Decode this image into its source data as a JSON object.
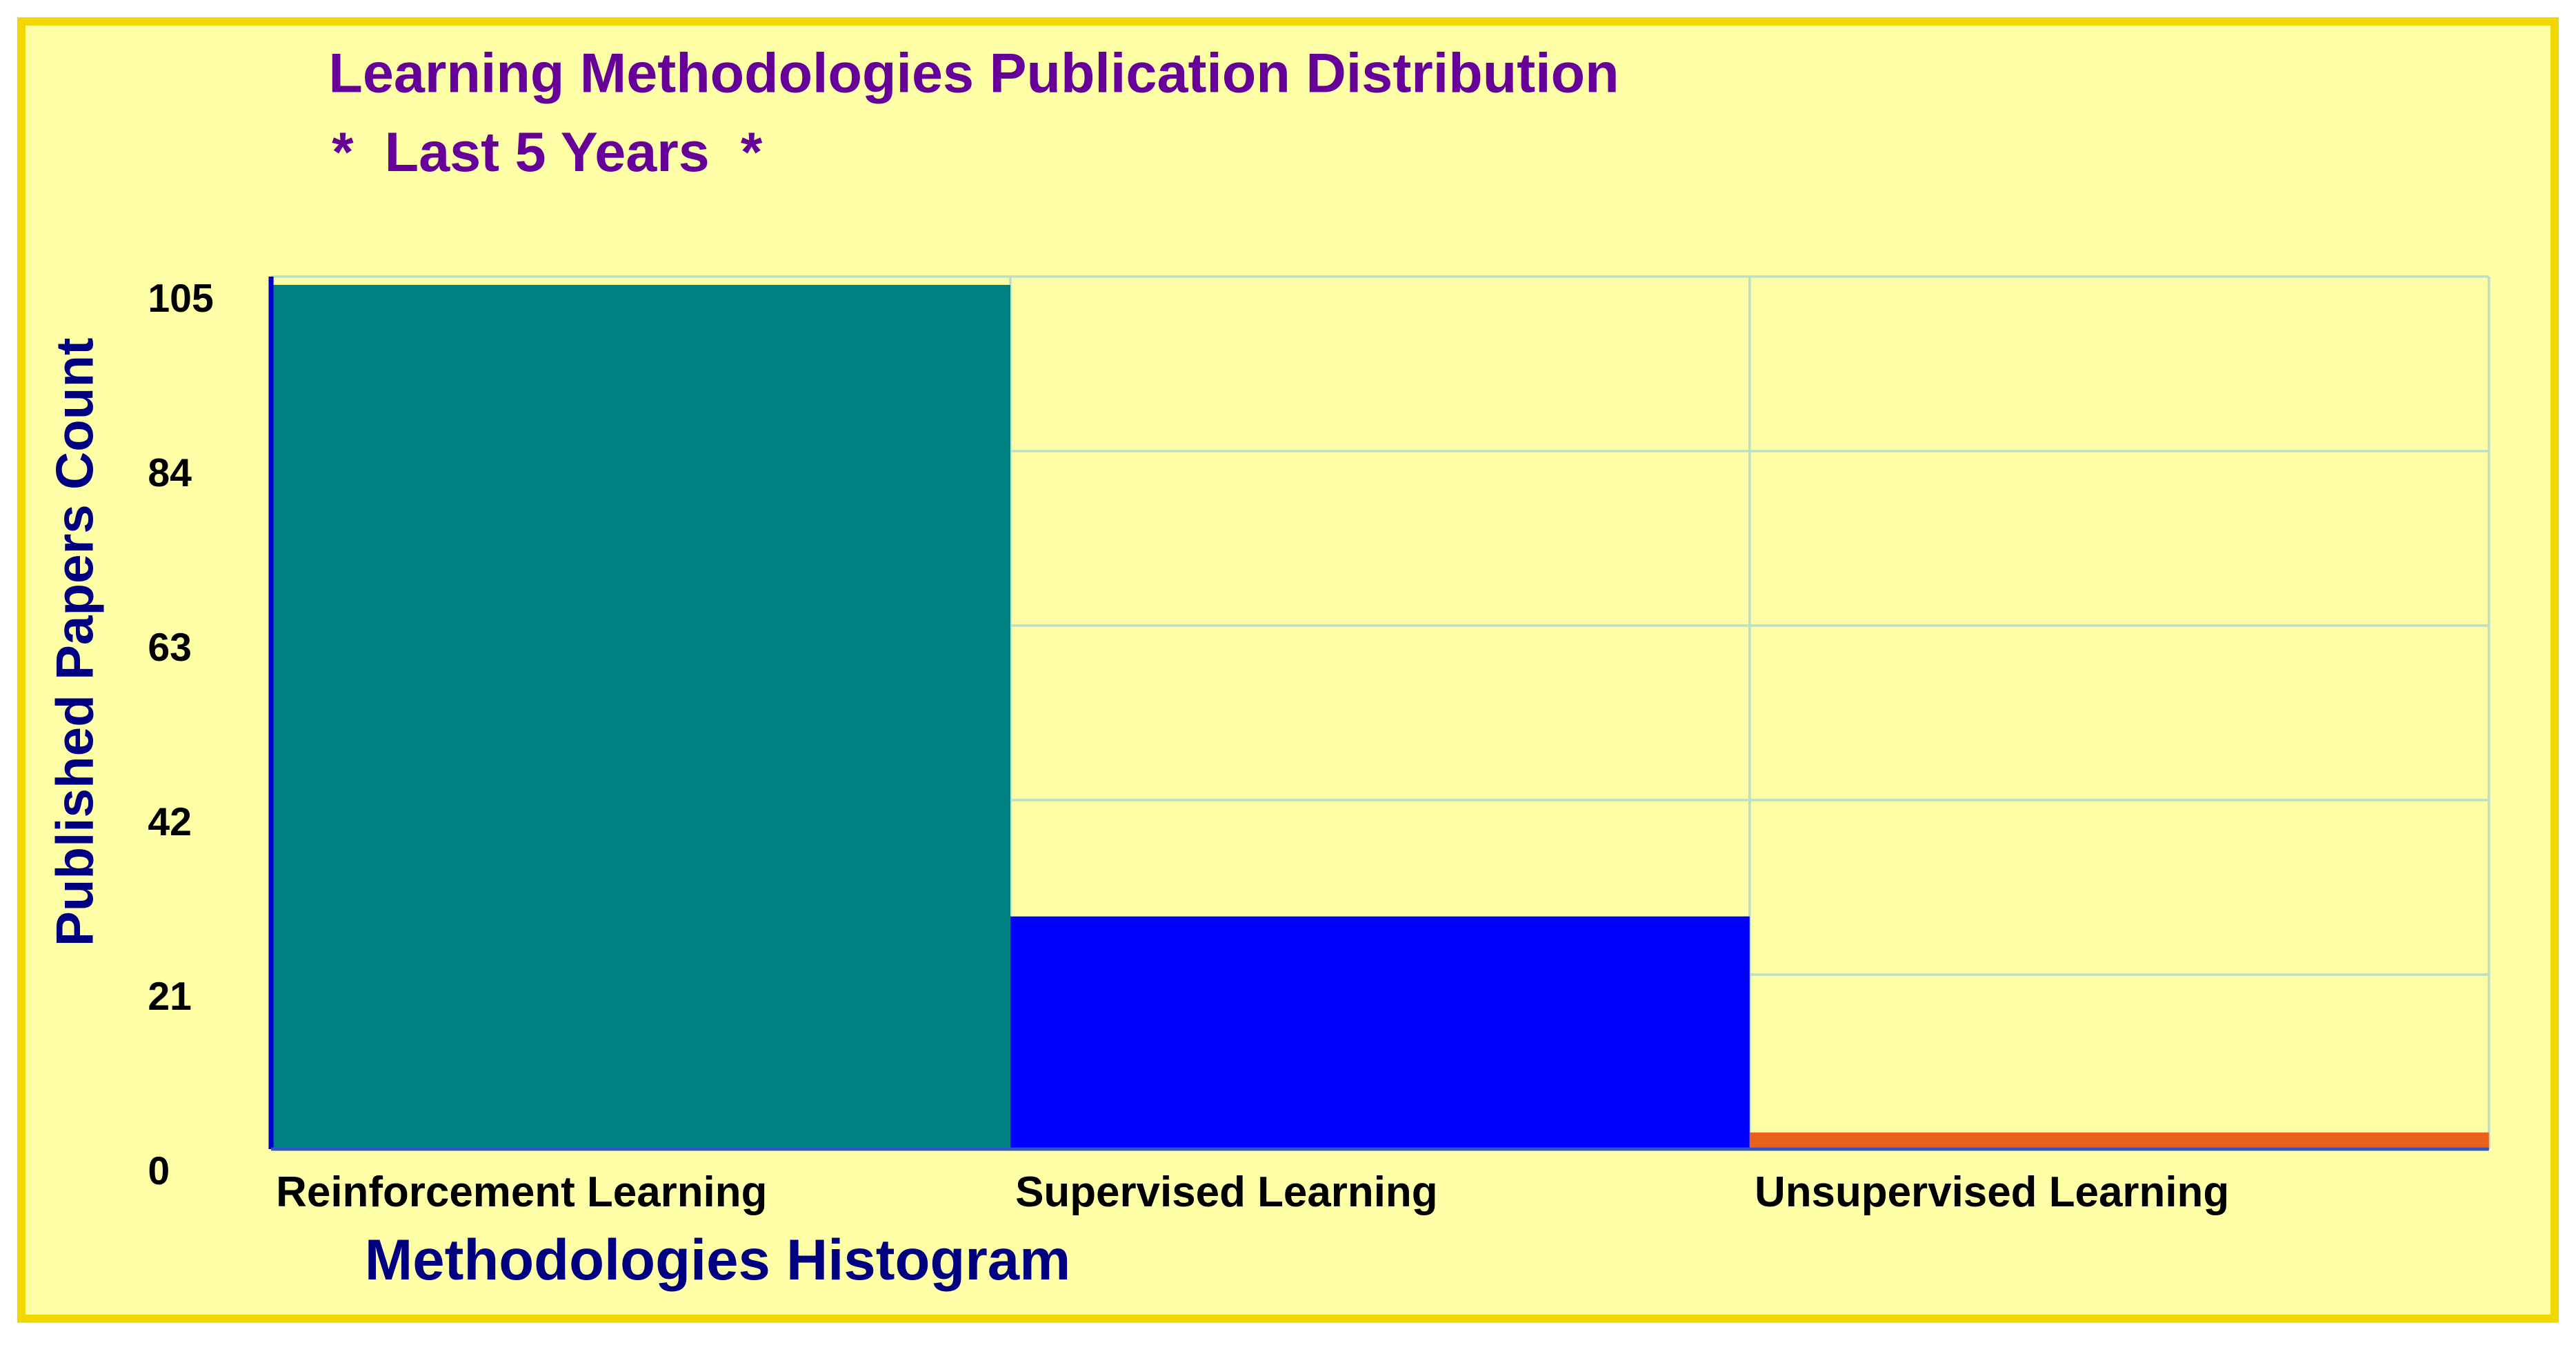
{
  "chart_data": {
    "type": "bar",
    "title": "Learning Methodologies Publication Distribution",
    "subtitle": "*  Last 5 Years  *",
    "x_label": "Methodologies Histogram",
    "y_label": "Published Papers Count",
    "categories": [
      "Reinforcement Learning",
      "Supervised Learning",
      "Unsupervised Learning"
    ],
    "values": [
      104,
      28,
      2
    ],
    "colors": [
      "#008080",
      "#0000ff",
      "#e8621c"
    ],
    "ylim": [
      0,
      105
    ],
    "yticks": [
      0,
      21,
      42,
      63,
      84,
      105
    ],
    "grid": true
  }
}
